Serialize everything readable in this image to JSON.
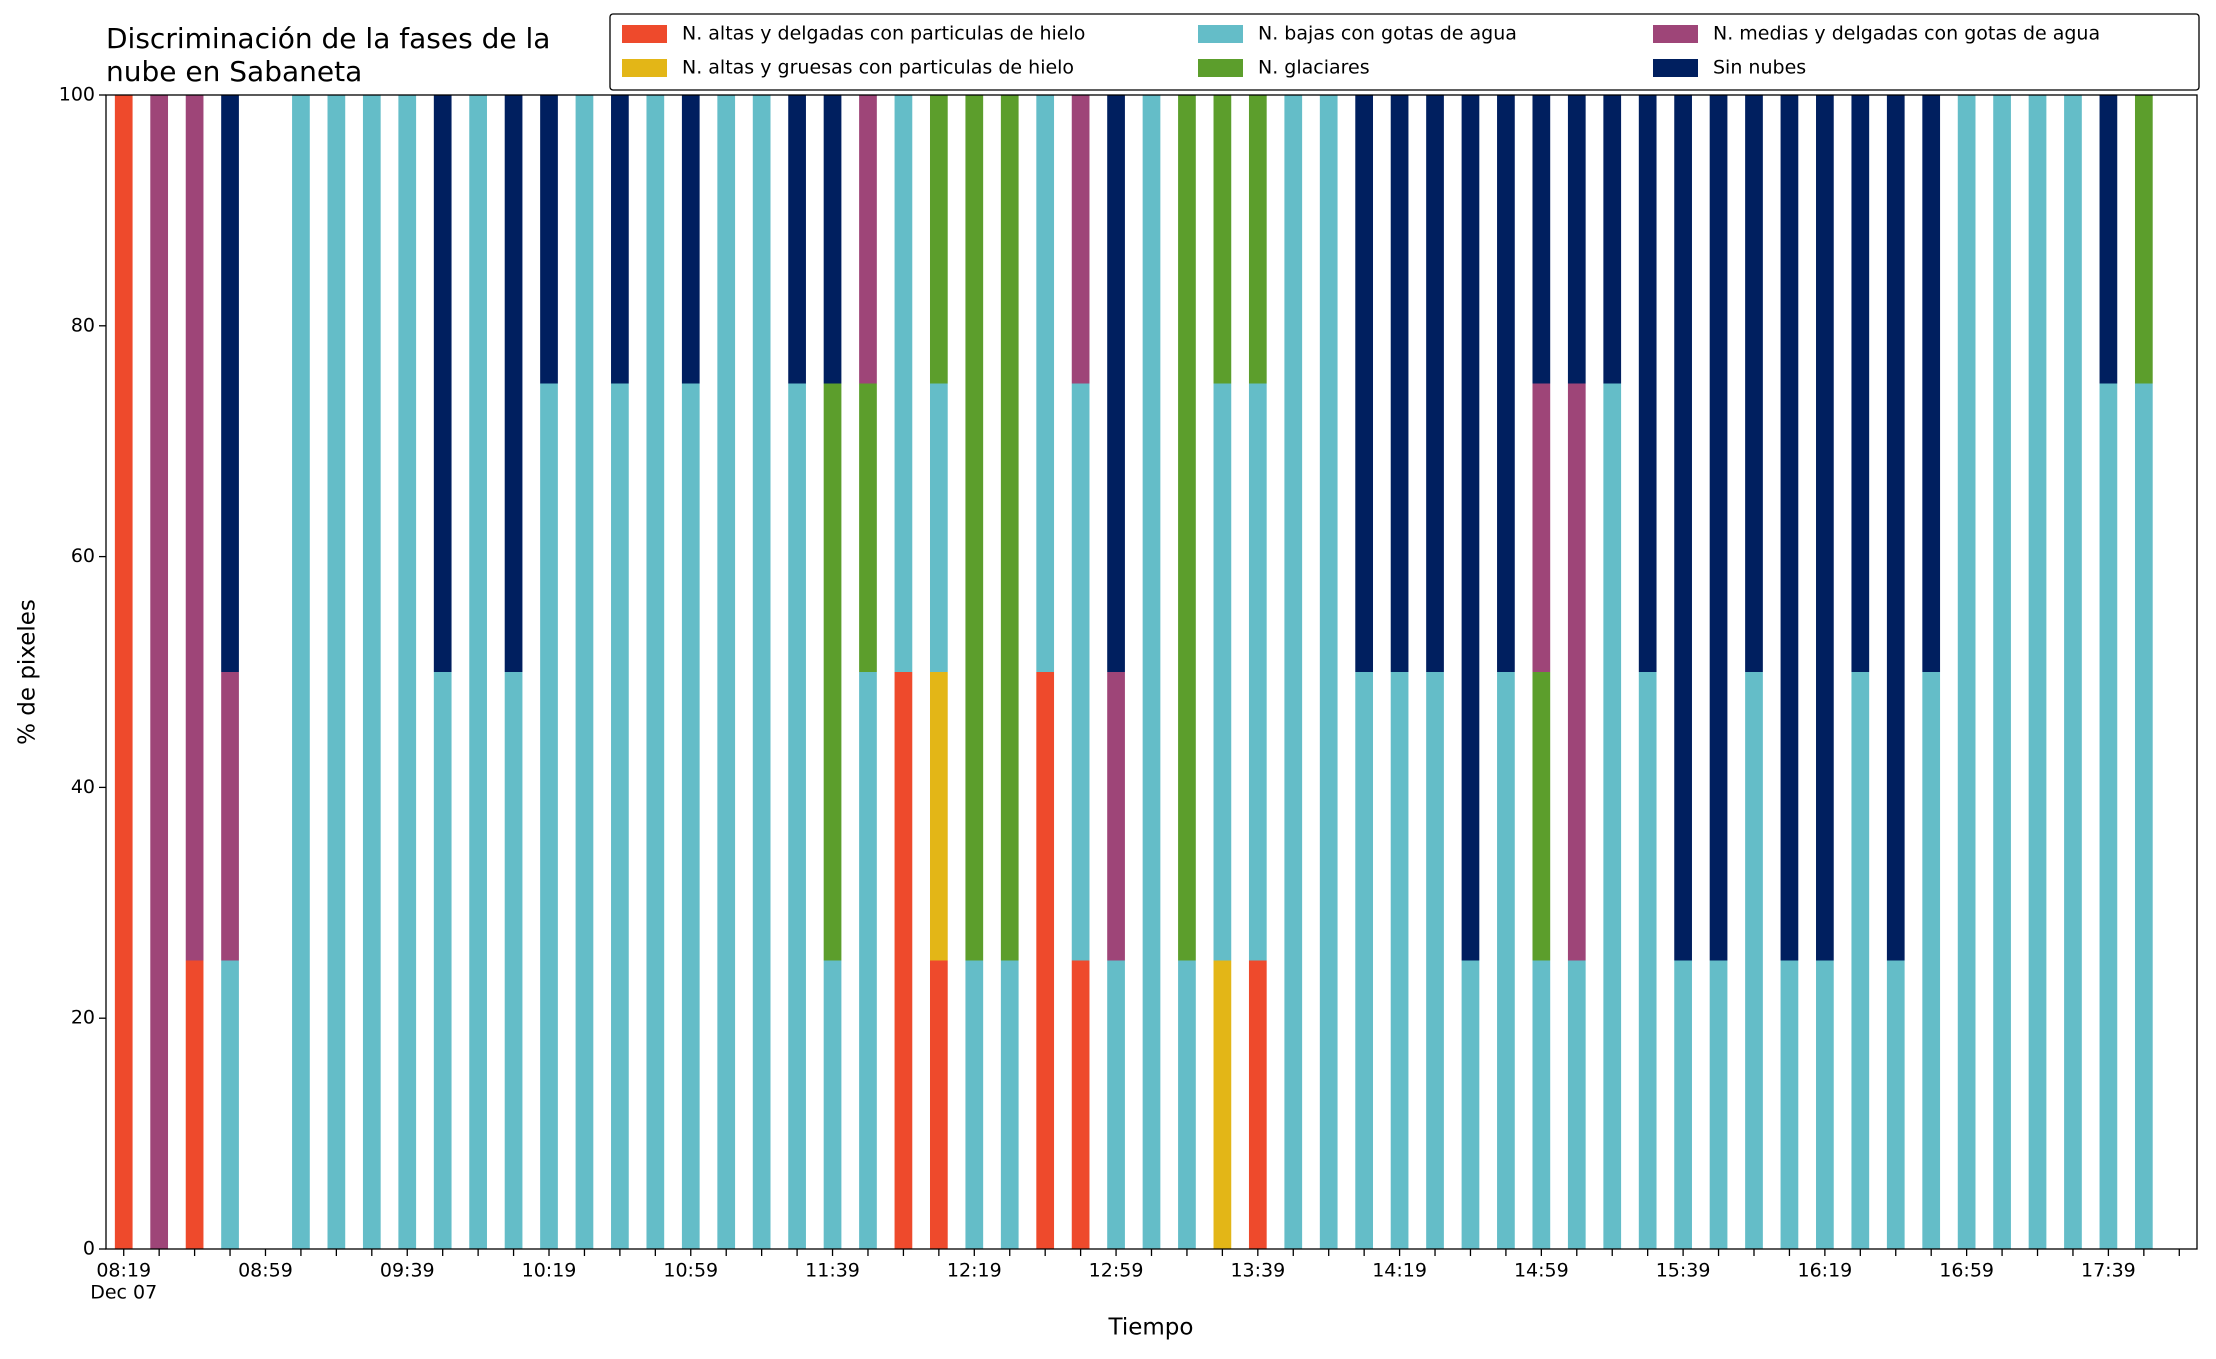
{
  "chart_data": {
    "type": "stacked_bar",
    "title": [
      "Discriminación de la fases de la",
      "nube en Sabaneta"
    ],
    "x_label": "Tiempo",
    "y_label": "% de pixeles",
    "date_label": "Dec 07",
    "categories": [
      "08:19",
      null,
      null,
      null,
      "08:59",
      null,
      null,
      null,
      "09:39",
      null,
      null,
      null,
      "10:19",
      null,
      null,
      null,
      "10:59",
      null,
      null,
      null,
      "11:39",
      null,
      null,
      null,
      "12:19",
      null,
      null,
      null,
      "12:59",
      null,
      null,
      null,
      "13:39",
      null,
      null,
      null,
      "14:19",
      null,
      null,
      null,
      "14:59",
      null,
      null,
      null,
      "15:39",
      null,
      null,
      null,
      "16:19",
      null,
      null,
      null,
      "16:59",
      null,
      null,
      null,
      "17:39",
      null,
      null
    ],
    "series": [
      {
        "name": "N. altas y delgadas con particulas de hielo",
        "color": "#ee4a2c",
        "values": [
          100,
          0,
          25,
          0,
          0,
          0,
          0,
          0,
          0,
          0,
          0,
          0,
          0,
          0,
          0,
          0,
          0,
          0,
          0,
          0,
          0,
          0,
          50,
          25,
          0,
          0,
          50,
          25,
          0,
          0,
          0,
          0,
          25,
          0,
          0,
          0,
          0,
          0,
          0,
          0,
          0,
          0,
          0,
          0,
          0,
          0,
          0,
          0,
          0,
          0,
          0,
          0,
          0,
          0,
          0,
          0,
          0,
          0,
          0
        ]
      },
      {
        "name": "N. altas y gruesas con particulas de hielo",
        "color": "#e3b617",
        "values": [
          0,
          0,
          0,
          0,
          0,
          0,
          0,
          0,
          0,
          0,
          0,
          0,
          0,
          0,
          0,
          0,
          0,
          0,
          0,
          0,
          0,
          0,
          0,
          25,
          0,
          0,
          0,
          0,
          0,
          0,
          0,
          25,
          0,
          0,
          0,
          0,
          0,
          0,
          0,
          0,
          0,
          0,
          0,
          0,
          0,
          0,
          0,
          0,
          0,
          0,
          0,
          0,
          0,
          0,
          0,
          0,
          0,
          0,
          0
        ]
      },
      {
        "name": "N. bajas con gotas de agua",
        "color": "#64bdc8",
        "values": [
          0,
          0,
          0,
          25,
          0,
          100,
          100,
          100,
          100,
          50,
          100,
          50,
          75,
          100,
          75,
          100,
          75,
          100,
          100,
          75,
          25,
          50,
          50,
          25,
          25,
          25,
          50,
          50,
          25,
          100,
          25,
          50,
          50,
          100,
          100,
          50,
          50,
          50,
          25,
          50,
          25,
          25,
          75,
          50,
          25,
          25,
          50,
          25,
          25,
          50,
          25,
          50,
          100,
          100,
          100,
          100,
          75,
          75,
          0
        ]
      },
      {
        "name": "N. glaciares",
        "color": "#5c9e2c",
        "values": [
          0,
          0,
          0,
          0,
          0,
          0,
          0,
          0,
          0,
          0,
          0,
          0,
          0,
          0,
          0,
          0,
          0,
          0,
          0,
          0,
          50,
          25,
          0,
          25,
          75,
          75,
          0,
          0,
          0,
          0,
          75,
          25,
          25,
          0,
          0,
          0,
          0,
          0,
          0,
          0,
          25,
          0,
          0,
          0,
          0,
          0,
          0,
          0,
          0,
          0,
          0,
          0,
          0,
          0,
          0,
          0,
          0,
          25,
          0
        ]
      },
      {
        "name": "N. medias y delgadas con gotas de agua",
        "color": "#9e4578",
        "values": [
          0,
          100,
          75,
          25,
          0,
          0,
          0,
          0,
          0,
          0,
          0,
          0,
          0,
          0,
          0,
          0,
          0,
          0,
          0,
          0,
          0,
          25,
          0,
          0,
          0,
          0,
          0,
          25,
          25,
          0,
          0,
          0,
          0,
          0,
          0,
          0,
          0,
          0,
          0,
          0,
          25,
          50,
          0,
          0,
          0,
          0,
          0,
          0,
          0,
          0,
          0,
          0,
          0,
          0,
          0,
          0,
          0,
          0,
          0
        ]
      },
      {
        "name": "Sin nubes",
        "color": "#001f5f",
        "values": [
          0,
          0,
          0,
          50,
          0,
          0,
          0,
          0,
          0,
          50,
          0,
          50,
          25,
          0,
          25,
          0,
          25,
          0,
          0,
          25,
          25,
          0,
          0,
          0,
          0,
          0,
          0,
          0,
          50,
          0,
          0,
          0,
          0,
          0,
          0,
          50,
          50,
          50,
          75,
          50,
          25,
          25,
          25,
          50,
          75,
          75,
          50,
          75,
          75,
          50,
          75,
          50,
          0,
          0,
          0,
          0,
          25,
          0,
          0
        ]
      }
    ],
    "ylim": [
      0,
      100
    ],
    "yticks": [
      0,
      20,
      40,
      60,
      80,
      100
    ],
    "legend": "top right",
    "legend_columns": 3
  }
}
